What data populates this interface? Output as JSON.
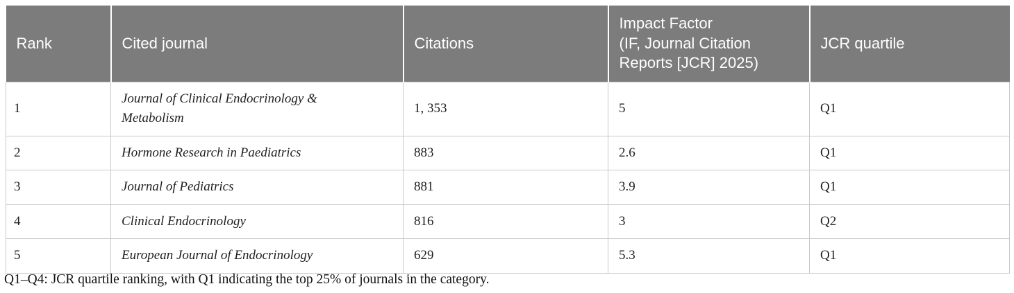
{
  "table": {
    "columns": [
      {
        "id": "rank",
        "label": "Rank"
      },
      {
        "id": "journal",
        "label": "Cited journal"
      },
      {
        "id": "citations",
        "label": "Citations"
      },
      {
        "id": "impact_factor",
        "label": "Impact Factor\n(IF, Journal Citation\nReports [JCR] 2025)"
      },
      {
        "id": "quartile",
        "label": "JCR quartile"
      }
    ],
    "rows": [
      {
        "rank": "1",
        "journal": "Journal of Clinical Endocrinology & Metabolism",
        "citations": "1, 353",
        "impact_factor": "5",
        "quartile": "Q1"
      },
      {
        "rank": "2",
        "journal": "Hormone Research in Paediatrics",
        "citations": "883",
        "impact_factor": "2.6",
        "quartile": "Q1"
      },
      {
        "rank": "3",
        "journal": "Journal of Pediatrics",
        "citations": "881",
        "impact_factor": "3.9",
        "quartile": "Q1"
      },
      {
        "rank": "4",
        "journal": "Clinical Endocrinology",
        "citations": "816",
        "impact_factor": "3",
        "quartile": "Q2"
      },
      {
        "rank": "5",
        "journal": "European Journal of Endocrinology",
        "citations": "629",
        "impact_factor": "5.3",
        "quartile": "Q1"
      }
    ],
    "footnote": "Q1–Q4: JCR quartile ranking, with Q1 indicating the top 25% of journals in the category."
  },
  "colors": {
    "header_bg": "#7c7c7c",
    "header_text": "#ffffff",
    "row_border": "#c9c9c9",
    "body_text": "#1f1f1f"
  }
}
